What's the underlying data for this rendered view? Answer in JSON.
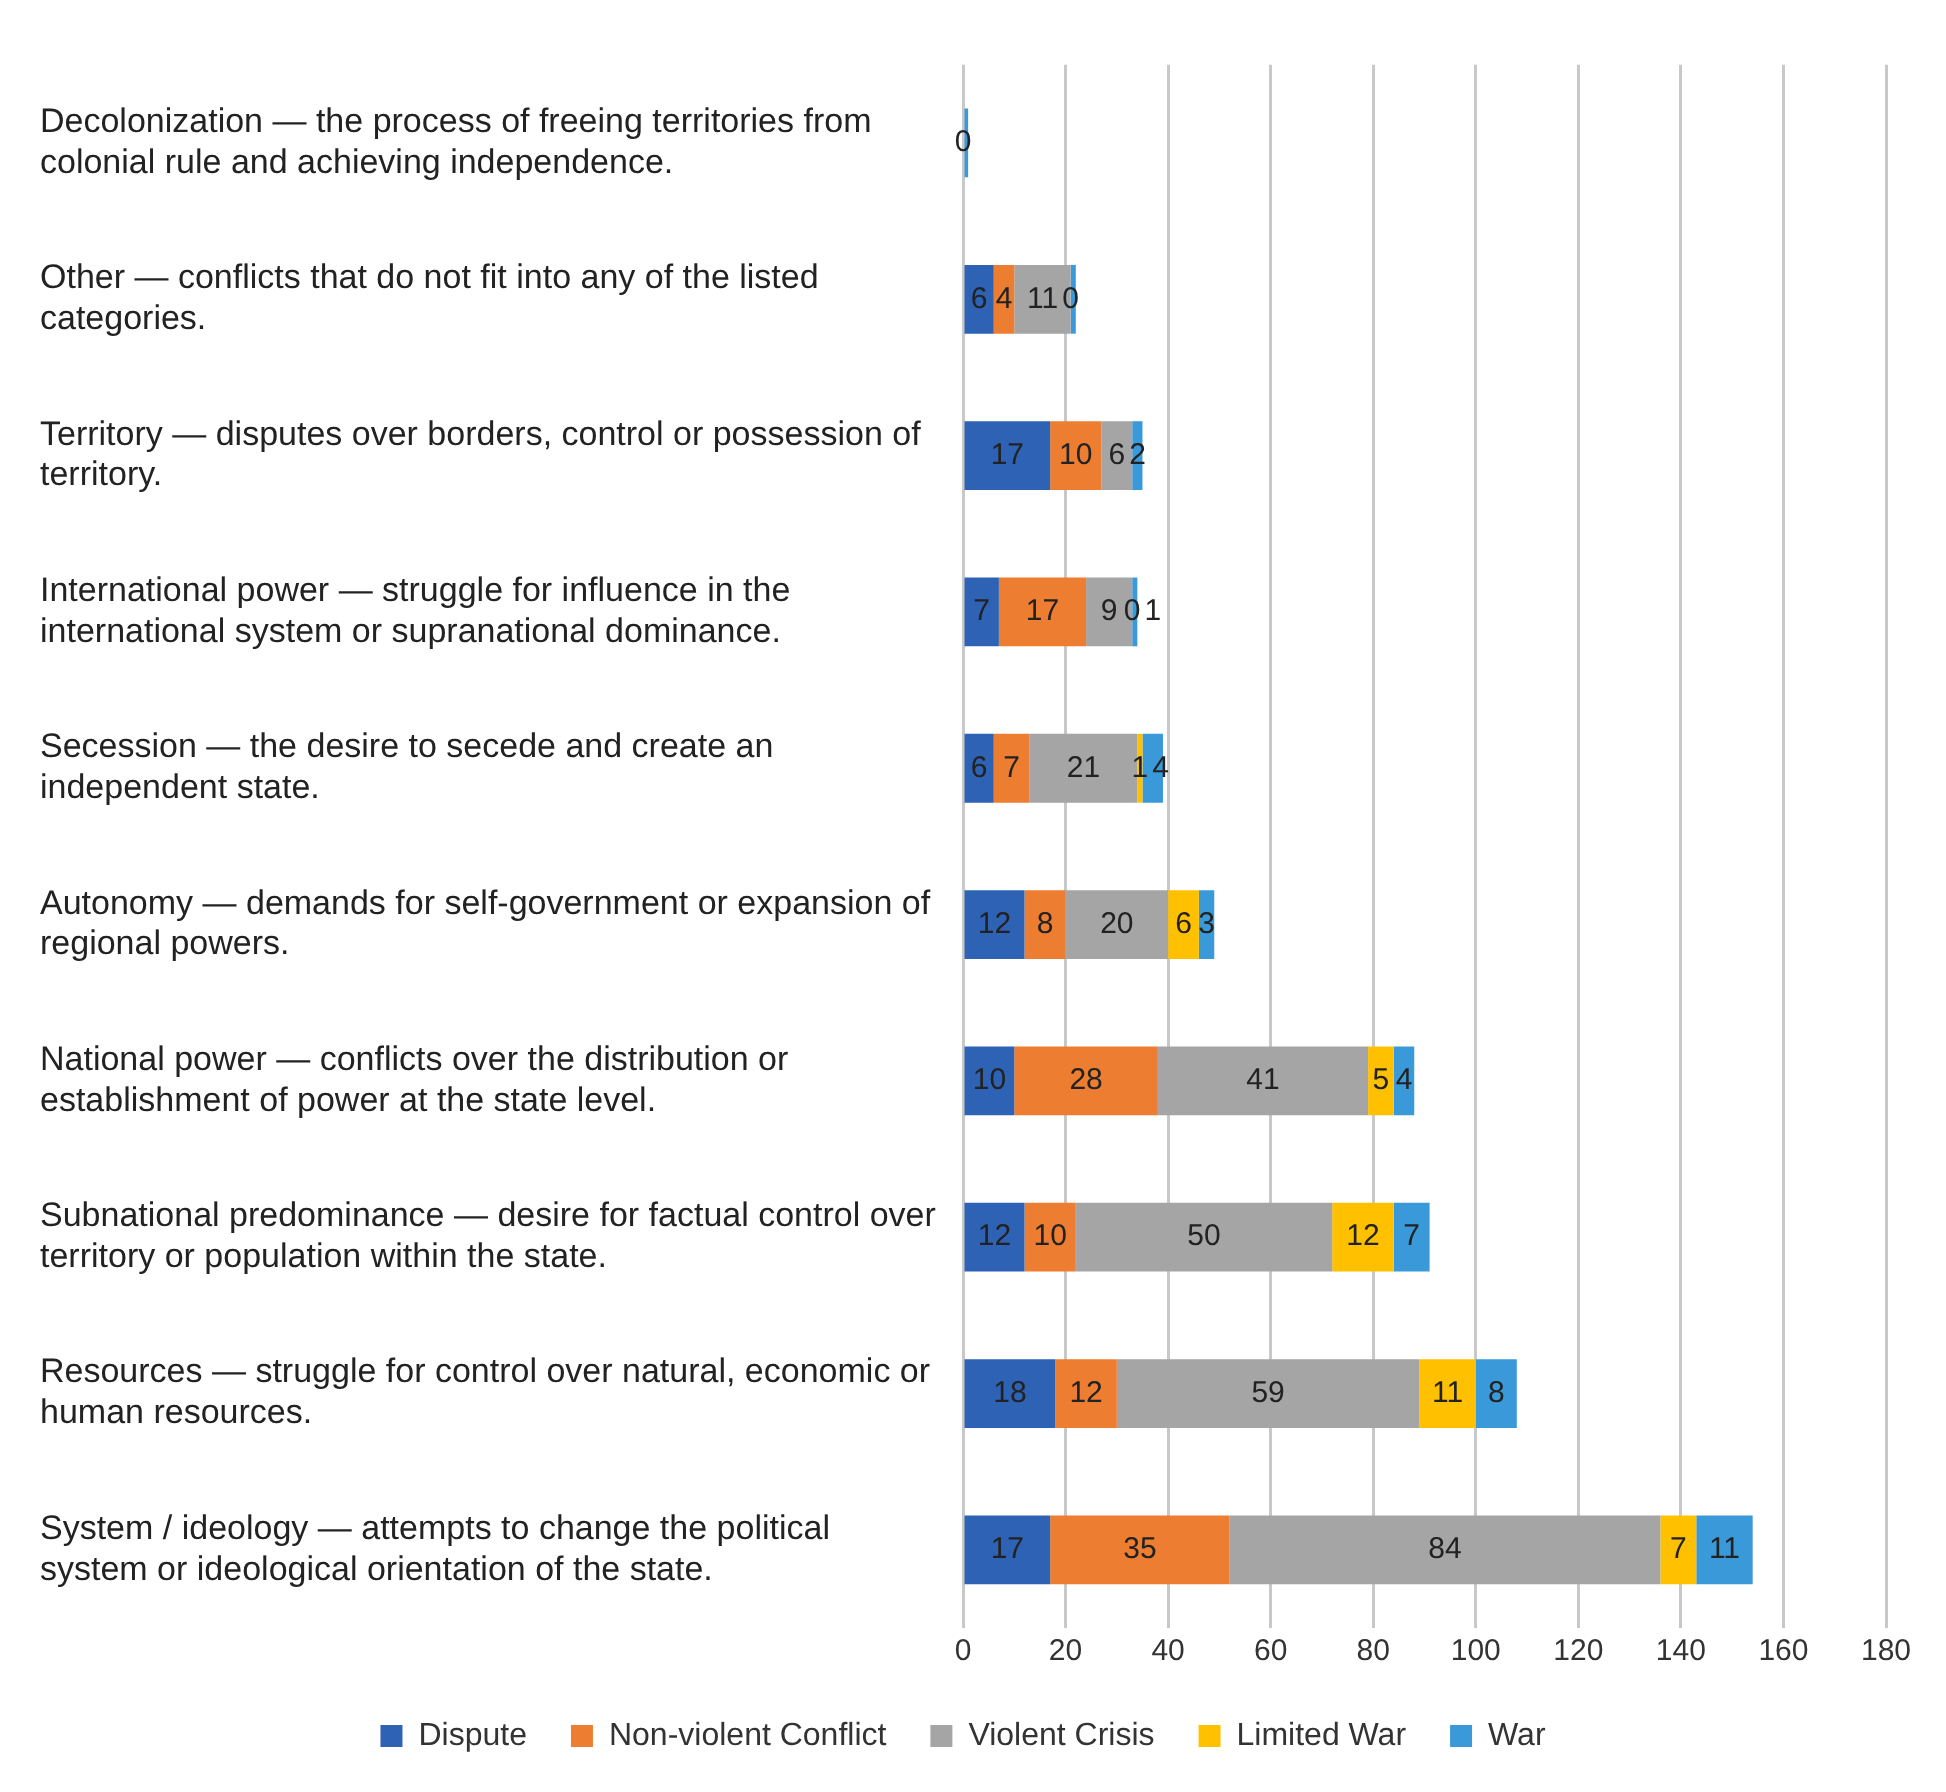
{
  "chart_data": {
    "type": "bar",
    "orientation": "horizontal",
    "stacked": true,
    "categories": [
      "Decolonization — the process of freeing territories from colonial rule and achieving independence.",
      "Other — conflicts that do not fit into any of the listed categories.",
      "Territory — disputes over borders, control or possession of territory.",
      "International power — struggle for influence in the international system or supranational dominance.",
      "Secession — the desire to secede and create an independent state.",
      "Autonomy — demands for self-government or expansion of regional powers.",
      "National power — conflicts over the distribution or establishment of power at the state level.",
      "Subnational predominance — desire for factual control over territory or population within the state.",
      "Resources — struggle for control over natural, economic or human resources.",
      "System / ideology — attempts to change the political system or ideological orientation of the state."
    ],
    "series": [
      {
        "name": "Dispute",
        "color": "#2e62b5",
        "values": [
          0,
          6,
          17,
          7,
          6,
          12,
          10,
          12,
          18,
          17
        ],
        "value_labels": [
          "0",
          "6",
          "17",
          "7",
          "6",
          "12",
          "10",
          "12",
          "18",
          "17"
        ]
      },
      {
        "name": "Non-violent Conflict",
        "color": "#ed7d31",
        "values": [
          0,
          4,
          10,
          17,
          7,
          8,
          28,
          10,
          12,
          35
        ],
        "value_labels": [
          null,
          "4",
          "10",
          "17",
          "7",
          "8",
          "28",
          "10",
          "12",
          "35"
        ]
      },
      {
        "name": "Violent Crisis",
        "color": "#a5a5a5",
        "values": [
          0,
          11,
          6,
          9,
          21,
          20,
          41,
          50,
          59,
          84
        ],
        "value_labels": [
          null,
          "11",
          "6",
          "9",
          "21",
          "20",
          "41",
          "50",
          "59",
          "84"
        ]
      },
      {
        "name": "Limited War",
        "color": "#ffc000",
        "values": [
          0,
          0,
          0,
          0,
          1,
          6,
          5,
          12,
          11,
          7
        ],
        "value_labels": [
          null,
          "0",
          null,
          "0",
          "1",
          "6",
          "5",
          "12",
          "11",
          "7"
        ]
      },
      {
        "name": "War",
        "color": "#3a9ad9",
        "values": [
          1,
          1,
          2,
          1,
          4,
          3,
          4,
          7,
          8,
          11
        ],
        "value_labels": [
          null,
          null,
          "2",
          "1",
          "4",
          "3",
          "4",
          "7",
          "8",
          "11"
        ]
      }
    ],
    "xlim": [
      0,
      180
    ],
    "xticks": [
      0,
      20,
      40,
      60,
      80,
      100,
      120,
      140,
      160,
      180
    ],
    "grid": "x",
    "legend": "bottom"
  }
}
